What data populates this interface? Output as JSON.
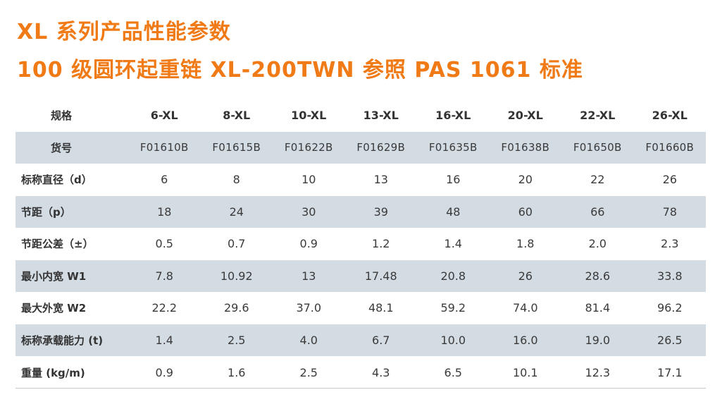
{
  "title": {
    "line1": "XL 系列产品性能参数",
    "line2": "100 级圆环起重链 XL-200TWN  参照 PAS 1061 标准"
  },
  "colors": {
    "title": "#f07a16",
    "row_shade": "#d3dbe3",
    "text": "#3a3a3a"
  },
  "table": {
    "header": {
      "label": "规格",
      "values": [
        "6-XL",
        "8-XL",
        "10-XL",
        "13-XL",
        "16-XL",
        "20-XL",
        "22-XL",
        "26-XL"
      ]
    },
    "rows": [
      {
        "label": "货号",
        "values": [
          "F01610B",
          "F01615B",
          "F01622B",
          "F01629B",
          "F01635B",
          "F01638B",
          "F01650B",
          "F01660B"
        ]
      },
      {
        "label": "标称直径（d）",
        "values": [
          "6",
          "8",
          "10",
          "13",
          "16",
          "20",
          "22",
          "26"
        ]
      },
      {
        "label": "节距（p）",
        "values": [
          "18",
          "24",
          "30",
          "39",
          "48",
          "60",
          "66",
          "78"
        ]
      },
      {
        "label": "节距公差（±）",
        "values": [
          "0.5",
          "0.7",
          "0.9",
          "1.2",
          "1.4",
          "1.8",
          "2.0",
          "2.3"
        ]
      },
      {
        "label": "最小内宽 W1",
        "values": [
          "7.8",
          "10.92",
          "13",
          "17.48",
          "20.8",
          "26",
          "28.6",
          "33.8"
        ]
      },
      {
        "label": "最大外宽 W2",
        "values": [
          "22.2",
          "29.6",
          "37.0",
          "48.1",
          "59.2",
          "74.0",
          "81.4",
          "96.2"
        ]
      },
      {
        "label": "标称承载能力 (t)",
        "values": [
          "1.4",
          "2.5",
          "4.0",
          "6.7",
          "10.0",
          "16.0",
          "19.0",
          "26.5"
        ]
      },
      {
        "label": "重量 (kg/m)",
        "values": [
          "0.9",
          "1.6",
          "2.5",
          "4.3",
          "6.5",
          "10.1",
          "12.3",
          "17.1"
        ]
      }
    ]
  }
}
